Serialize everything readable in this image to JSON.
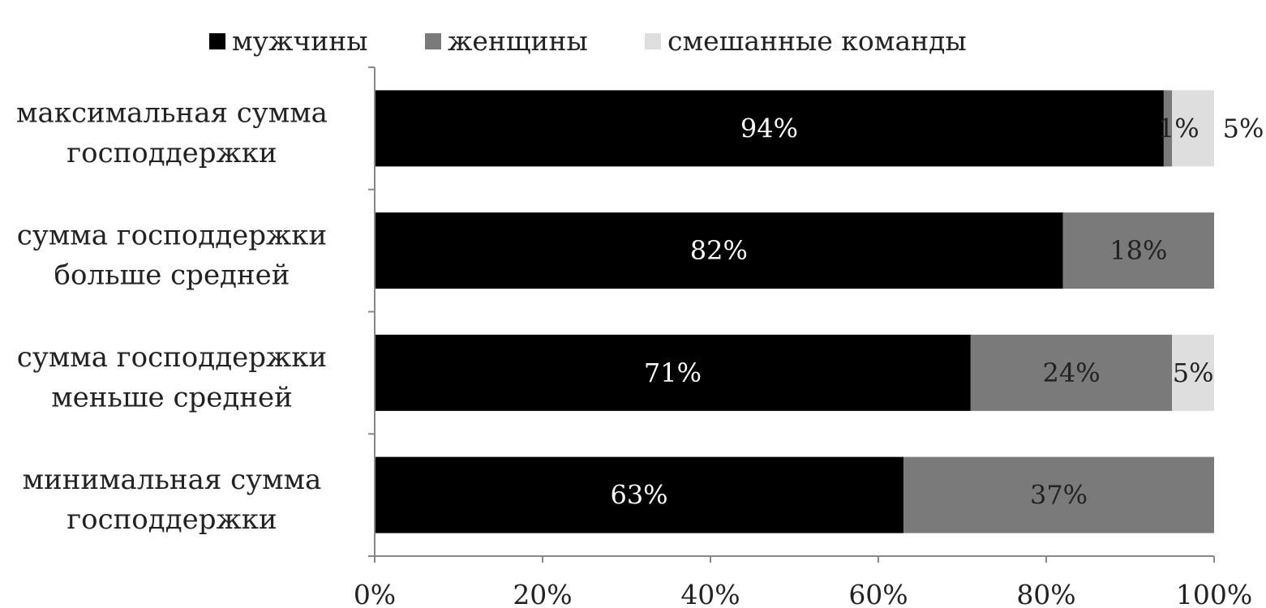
{
  "chart_data": {
    "type": "bar",
    "orientation": "horizontal",
    "stacked": true,
    "categories": [
      [
        "максимальная сумма",
        "господдержки"
      ],
      [
        "сумма господдержки",
        "больше средней"
      ],
      [
        "сумма господдержки",
        "меньше средней"
      ],
      [
        "минимальная сумма",
        "господдержки"
      ]
    ],
    "series": [
      {
        "name": "мужчины",
        "color": "#000000",
        "label_color": "#ffffff",
        "values": [
          94,
          82,
          71,
          63
        ]
      },
      {
        "name": "женщины",
        "color": "#7a7a7a",
        "label_color": "#222222",
        "values": [
          1,
          18,
          24,
          37
        ]
      },
      {
        "name": "смешанные команды",
        "color": "#dedede",
        "label_color": "#222222",
        "values": [
          5,
          0,
          5,
          0
        ]
      }
    ],
    "data_labels": [
      [
        "94%",
        "1%",
        "5%"
      ],
      [
        "82%",
        "18%",
        ""
      ],
      [
        "71%",
        "24%",
        "5%"
      ],
      [
        "63%",
        "37%",
        ""
      ]
    ],
    "x_ticks": [
      "0%",
      "20%",
      "40%",
      "60%",
      "80%",
      "100%"
    ],
    "xlim": [
      0,
      100
    ],
    "legend_position": "top",
    "grid": false,
    "title": "",
    "xlabel": "",
    "ylabel": ""
  }
}
